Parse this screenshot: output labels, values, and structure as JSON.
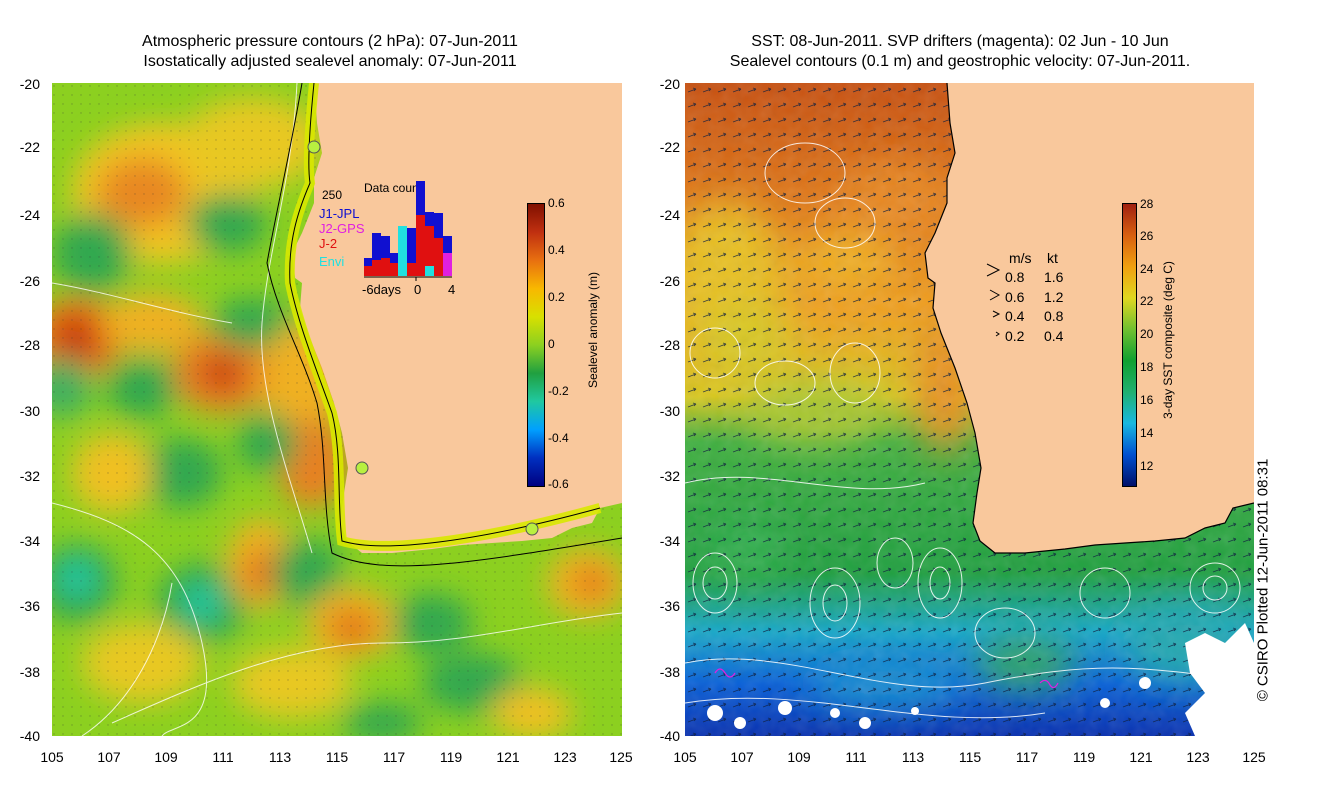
{
  "left_panel": {
    "title_line1": "Atmospheric pressure contours (2 hPa): 07-Jun-2011",
    "title_line2": "Isostatically adjusted sealevel anomaly: 07-Jun-2011",
    "colorbar": {
      "label": "Sealevel anomaly (m)",
      "ticks": [
        "0.6",
        "0.4",
        "0.2",
        "0",
        "-0.2",
        "-0.4",
        "-0.6"
      ]
    },
    "data_count": {
      "title": "Data count",
      "ymax_label": "250",
      "legend": [
        {
          "name": "J1-JPL",
          "color": "#1010d0"
        },
        {
          "name": "J2-GPS",
          "color": "#e020e0"
        },
        {
          "name": "J-2",
          "color": "#e01010"
        },
        {
          "name": "Envi",
          "color": "#20e0e0"
        }
      ],
      "xlabels": [
        "-6days",
        "0",
        "4"
      ]
    }
  },
  "right_panel": {
    "title_line1": "SST: 08-Jun-2011. SVP drifters (magenta): 02 Jun - 10 Jun",
    "title_line2": "Sealevel contours (0.1 m) and geostrophic velocity: 07-Jun-2011.",
    "colorbar": {
      "label": "3-day SST composite (deg C)",
      "ticks": [
        "28",
        "26",
        "24",
        "22",
        "20",
        "18",
        "16",
        "14",
        "12"
      ]
    },
    "velocity_legend": {
      "header_ms": "m/s",
      "header_kt": "kt",
      "rows": [
        {
          "ms": "0.8",
          "kt": "1.6"
        },
        {
          "ms": "0.6",
          "kt": "1.2"
        },
        {
          "ms": "0.4",
          "kt": "0.8"
        },
        {
          "ms": "0.2",
          "kt": "0.4"
        }
      ]
    }
  },
  "axes": {
    "y_ticks": [
      "-20",
      "-22",
      "-24",
      "-26",
      "-28",
      "-30",
      "-32",
      "-34",
      "-36",
      "-38",
      "-40"
    ],
    "x_ticks": [
      "105",
      "107",
      "109",
      "111",
      "113",
      "115",
      "117",
      "119",
      "121",
      "123",
      "125"
    ]
  },
  "credit": "© CSIRO Plotted 12-Jun-2011 08:31",
  "colors": {
    "land": "#f9c89c",
    "coast": "#000000",
    "contour": "#ffffff",
    "ssh_scale": [
      "#000080",
      "#0030c0",
      "#00a0ff",
      "#20c8a0",
      "#20a040",
      "#8cd020",
      "#d8e000",
      "#f8b800",
      "#e87010",
      "#c03010",
      "#801000"
    ],
    "sst_scale": [
      "#00106a",
      "#0050d0",
      "#18b8e0",
      "#20b070",
      "#10a030",
      "#70c030",
      "#e0d820",
      "#f0a010",
      "#d86010",
      "#a02010"
    ]
  }
}
